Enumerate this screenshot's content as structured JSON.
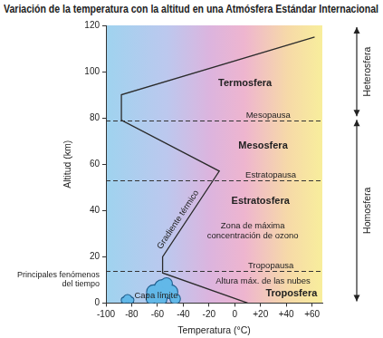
{
  "chart_data": {
    "type": "line",
    "title": "Variación de la temperatura con la altitud en una Atmósfera Estándar Internacional",
    "x_label": "Temperatura (°C)",
    "y_label": "Altitud (km)",
    "x": [
      10,
      -56,
      -56,
      -12,
      -88,
      -88,
      62
    ],
    "values": [
      0,
      13,
      20,
      57,
      79,
      90,
      115
    ],
    "color": "#2b2b2b",
    "xlim": [
      -100,
      68
    ],
    "xticks": [
      -100,
      -80,
      -60,
      -40,
      -20,
      0,
      {
        "value": 20,
        "label": "+20"
      },
      {
        "value": 40,
        "label": "+40"
      },
      {
        "value": 60,
        "label": "+60"
      }
    ],
    "ylim": [
      0,
      120
    ],
    "yticks": [
      0,
      20,
      40,
      60,
      80,
      100,
      120
    ],
    "grid": false,
    "levels": [
      {
        "label": "Mesopausa",
        "value": 79,
        "x": 26
      },
      {
        "label": "Estratopausa",
        "value": 53,
        "x": 28
      },
      {
        "label": "Tropopausa",
        "value": 14,
        "x": 28
      }
    ],
    "layers": [
      {
        "label": "Termosfera",
        "x": 8,
        "y": 95
      },
      {
        "label": "Mesosfera",
        "x": 22,
        "y": 68
      },
      {
        "label": "Estratosfera",
        "x": 20,
        "y": 44
      },
      {
        "label": "Troposfera",
        "x": 44,
        "y": 4
      }
    ],
    "annotations": [
      {
        "text": "Zona de máxima concentración de ozono",
        "x": 14,
        "y": 31
      },
      {
        "text": "Altura máx. de las nubes",
        "x": 22,
        "y": 9.5
      },
      {
        "text": "Capa límite",
        "x": -61,
        "y": 3
      }
    ],
    "line_label": {
      "text": "Gradiente térmico",
      "x": -44,
      "y": 36
    },
    "side_note": {
      "text": "Principales fenómenos del tiempo",
      "y": 10
    },
    "brackets": [
      {
        "label": "Heterosfera",
        "from": 80,
        "to": 120
      },
      {
        "label": "Homosfera",
        "from": 0,
        "to": 80
      }
    ]
  }
}
